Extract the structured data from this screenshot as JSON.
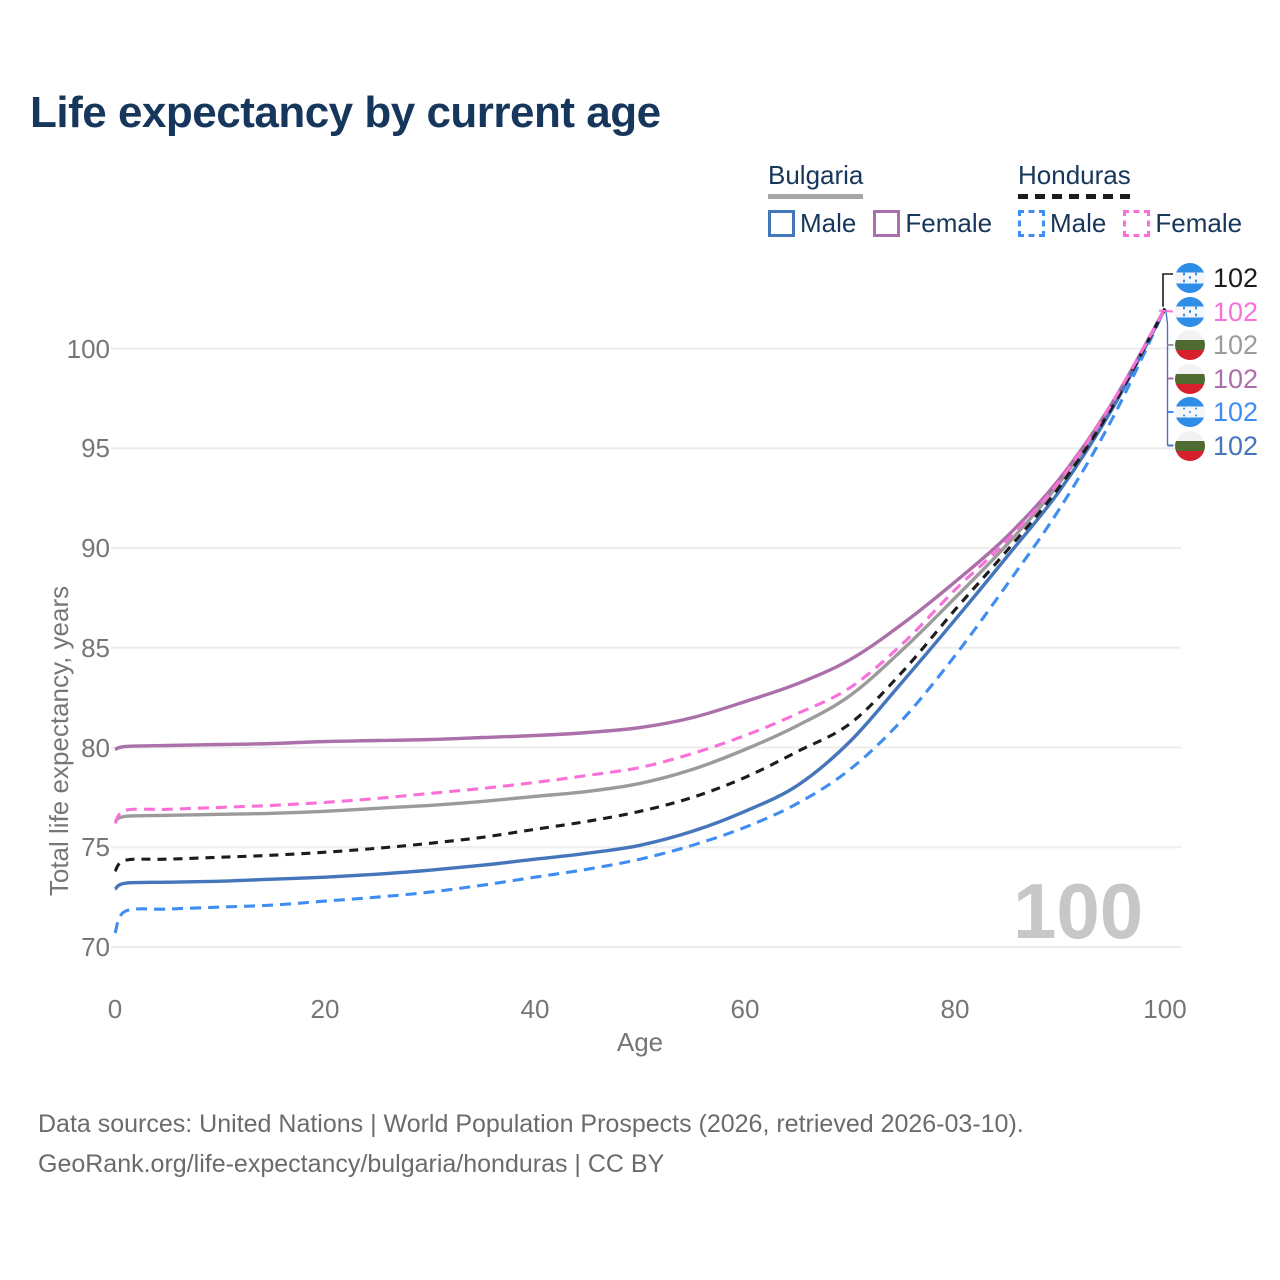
{
  "page": {
    "title": "Life expectancy by current age"
  },
  "legend": {
    "groups": [
      {
        "id": "bulgaria",
        "label": "Bulgaria",
        "total_series": "bg_total",
        "items": [
          {
            "id": "bg_male",
            "label": "Male"
          },
          {
            "id": "bg_female",
            "label": "Female"
          }
        ]
      },
      {
        "id": "honduras",
        "label": "Honduras",
        "total_series": "hn_total",
        "items": [
          {
            "id": "hn_male",
            "label": "Male"
          },
          {
            "id": "hn_female",
            "label": "Female"
          }
        ]
      }
    ]
  },
  "footer": {
    "line1": "Data sources: United Nations | World Population Prospects (2026, retrieved 2026-03-10).",
    "line2": "GeoRank.org/life-expectancy/bulgaria/honduras | CC BY"
  },
  "chart_data": {
    "type": "line",
    "title": "Life expectancy by current age",
    "xlabel": "Age",
    "ylabel": "Total life expectancy, years",
    "x_ticks": [
      0,
      20,
      40,
      60,
      80,
      100
    ],
    "y_ticks": [
      70,
      75,
      80,
      85,
      90,
      95,
      100
    ],
    "xlim": [
      0,
      100
    ],
    "ylim": [
      70,
      102
    ],
    "grid": "horizontal",
    "legend_position": "top-right",
    "watermark": "100",
    "colors": {
      "title_navy": "#16365c",
      "gridline": "#ededed",
      "tick_text": "#767676",
      "watermark_gray": "#c7c7c7"
    },
    "flags": {
      "bulgaria": [
        "#f2f2f4",
        "#4f6b31",
        "#d6202e"
      ],
      "honduras": [
        "#2e8de6",
        "#f4f6f9"
      ]
    },
    "ages": [
      0,
      1,
      5,
      10,
      15,
      20,
      25,
      30,
      35,
      40,
      45,
      50,
      55,
      60,
      65,
      70,
      75,
      80,
      85,
      90,
      95,
      100
    ],
    "series": [
      {
        "id": "bg_male",
        "name": "Bulgaria Male",
        "country": "Bulgaria",
        "sex": "Male",
        "line": "solid",
        "color": "#4575ba",
        "end_value": 102,
        "values": [
          72.9,
          73.2,
          73.25,
          73.3,
          73.4,
          73.5,
          73.65,
          73.85,
          74.1,
          74.4,
          74.7,
          75.1,
          75.8,
          76.8,
          78.1,
          80.3,
          83.3,
          86.4,
          89.6,
          92.9,
          97.0,
          102
        ]
      },
      {
        "id": "bg_female",
        "name": "Bulgaria Female",
        "country": "Bulgaria",
        "sex": "Female",
        "line": "solid",
        "color": "#ab6fa9",
        "end_value": 102,
        "values": [
          79.9,
          80.05,
          80.1,
          80.15,
          80.2,
          80.3,
          80.35,
          80.4,
          80.5,
          80.6,
          80.75,
          81.0,
          81.5,
          82.3,
          83.2,
          84.4,
          86.2,
          88.3,
          90.6,
          93.5,
          97.3,
          102
        ]
      },
      {
        "id": "bg_total",
        "name": "Bulgaria (both sexes)",
        "country": "Bulgaria",
        "sex": "Both",
        "line": "solid",
        "color": "#9b9b9b",
        "end_value": 102,
        "values": [
          76.3,
          76.55,
          76.6,
          76.65,
          76.7,
          76.8,
          76.95,
          77.1,
          77.3,
          77.55,
          77.8,
          78.2,
          78.9,
          79.9,
          81.1,
          82.6,
          84.9,
          87.5,
          90.2,
          93.3,
          97.2,
          102
        ]
      },
      {
        "id": "hn_male",
        "name": "Honduras Male",
        "country": "Honduras",
        "sex": "Male",
        "line": "dashed",
        "color": "#3f8df2",
        "end_value": 102,
        "values": [
          70.7,
          71.8,
          71.9,
          72.0,
          72.1,
          72.3,
          72.5,
          72.75,
          73.1,
          73.5,
          73.9,
          74.4,
          75.1,
          76.0,
          77.2,
          78.9,
          81.4,
          84.6,
          88.2,
          92.0,
          96.5,
          102
        ]
      },
      {
        "id": "hn_female",
        "name": "Honduras Female",
        "country": "Honduras",
        "sex": "Female",
        "line": "dashed",
        "color": "#f970d9",
        "end_value": 102,
        "values": [
          76.2,
          76.85,
          76.9,
          77.0,
          77.1,
          77.25,
          77.45,
          77.7,
          77.95,
          78.25,
          78.6,
          79.0,
          79.7,
          80.6,
          81.7,
          83.0,
          85.2,
          87.9,
          90.4,
          93.4,
          97.3,
          102
        ]
      },
      {
        "id": "hn_total",
        "name": "Honduras (both sexes)",
        "country": "Honduras",
        "sex": "Both",
        "line": "dashed",
        "color": "#1c1c1c",
        "end_value": 102,
        "values": [
          73.8,
          74.35,
          74.4,
          74.5,
          74.6,
          74.75,
          74.95,
          75.2,
          75.5,
          75.9,
          76.3,
          76.8,
          77.5,
          78.5,
          79.8,
          81.2,
          83.8,
          86.9,
          89.9,
          93.1,
          97.1,
          102
        ]
      }
    ],
    "end_labels": [
      {
        "series": "hn_total",
        "flag": "honduras",
        "value": "102"
      },
      {
        "series": "hn_female",
        "flag": "honduras",
        "value": "102"
      },
      {
        "series": "bg_total",
        "flag": "bulgaria",
        "value": "102"
      },
      {
        "series": "bg_female",
        "flag": "bulgaria",
        "value": "102"
      },
      {
        "series": "hn_male",
        "flag": "honduras",
        "value": "102"
      },
      {
        "series": "bg_male",
        "flag": "bulgaria",
        "value": "102"
      }
    ]
  }
}
